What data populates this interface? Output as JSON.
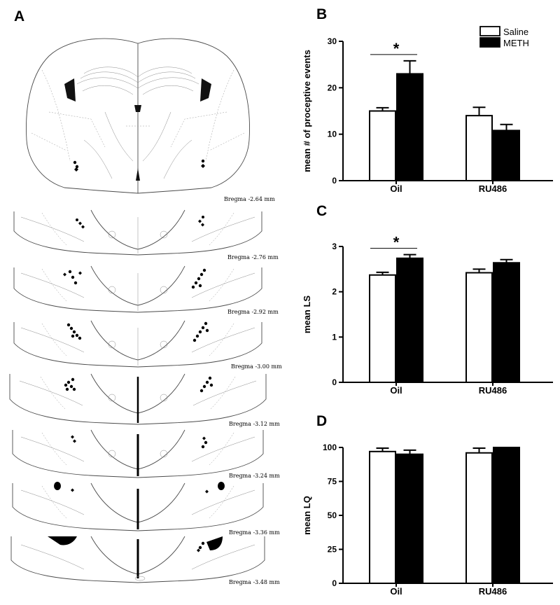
{
  "figure": {
    "panel_a": {
      "letter": "A",
      "bregma_labels": [
        "Bregma -2.64 mm",
        "Bregma -2.76 mm",
        "Bregma -2.92 mm",
        "Bregma -3.00 mm",
        "Bregma -3.12 mm",
        "Bregma -3.24 mm",
        "Bregma -3.36 mm",
        "Bregma -3.48 mm"
      ]
    },
    "legend": {
      "saline": "Saline",
      "meth": "METH"
    },
    "significance_marker": "*"
  },
  "chart_data": [
    {
      "panel": "B",
      "type": "bar",
      "categories": [
        "Oil",
        "RU486"
      ],
      "series": [
        {
          "name": "Saline",
          "color": "#ffffff",
          "values": [
            15,
            14
          ],
          "errors": [
            0.7,
            1.8
          ]
        },
        {
          "name": "METH",
          "color": "#000000",
          "values": [
            23,
            10.8
          ],
          "errors": [
            2.8,
            1.3
          ]
        }
      ],
      "ylabel": "mean # of proceptive events",
      "ylim": [
        0,
        30
      ],
      "yticks": [
        "0",
        "10",
        "20",
        "30"
      ],
      "significance": {
        "category": "Oil",
        "label": "*"
      }
    },
    {
      "panel": "C",
      "type": "bar",
      "categories": [
        "Oil",
        "RU486"
      ],
      "series": [
        {
          "name": "Saline",
          "color": "#ffffff",
          "values": [
            2.37,
            2.42
          ],
          "errors": [
            0.06,
            0.08
          ]
        },
        {
          "name": "METH",
          "color": "#000000",
          "values": [
            2.74,
            2.64
          ],
          "errors": [
            0.08,
            0.07
          ]
        }
      ],
      "ylabel": "mean LS",
      "ylim": [
        0,
        3
      ],
      "yticks": [
        "0",
        "1",
        "2",
        "3"
      ],
      "significance": {
        "category": "Oil",
        "label": "*"
      }
    },
    {
      "panel": "D",
      "type": "bar",
      "categories": [
        "Oil",
        "RU486"
      ],
      "series": [
        {
          "name": "Saline",
          "color": "#ffffff",
          "values": [
            97,
            96
          ],
          "errors": [
            2.5,
            3.5
          ]
        },
        {
          "name": "METH",
          "color": "#000000",
          "values": [
            95,
            100
          ],
          "errors": [
            3,
            0
          ]
        }
      ],
      "ylabel": "mean LQ",
      "ylim": [
        0,
        100
      ],
      "yticks": [
        "0",
        "25",
        "50",
        "75",
        "100"
      ]
    }
  ]
}
